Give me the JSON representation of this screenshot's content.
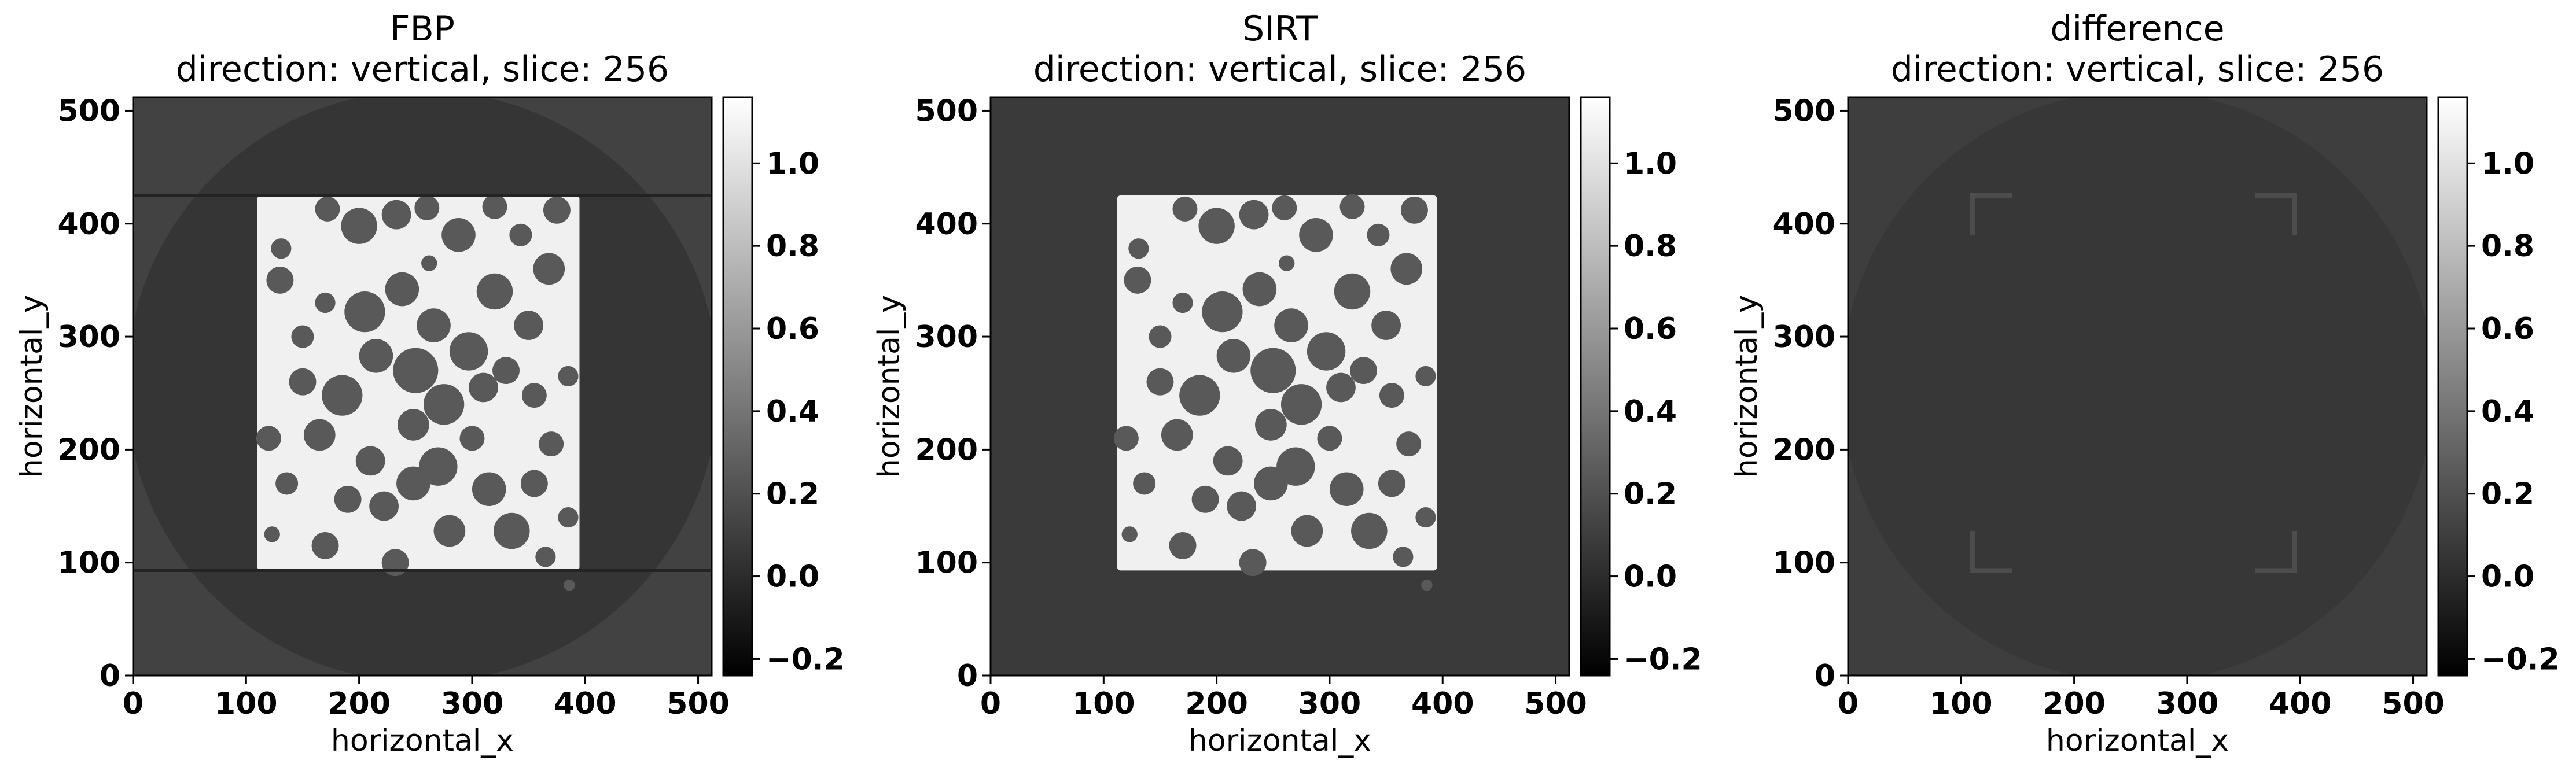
{
  "chart_data": [
    {
      "type": "heatmap",
      "panel": "fbp",
      "title": "FBP",
      "subtitle": "direction: vertical, slice: 256",
      "xlabel": "horizontal_x",
      "ylabel": "horizontal_y",
      "xlim": [
        0,
        512
      ],
      "ylim": [
        0,
        512
      ],
      "xticks": [
        0,
        100,
        200,
        300,
        400,
        500
      ],
      "yticks": [
        0,
        100,
        200,
        300,
        400,
        500
      ],
      "colormap": "gray",
      "clim": [
        -0.24,
        1.16
      ],
      "colorbar_ticks": [
        -0.2,
        0.0,
        0.2,
        0.4,
        0.6,
        0.8,
        1.0
      ],
      "background_value": 0.12,
      "circle_value": 0.05,
      "object": {
        "x": [
          110,
          395
        ],
        "y": [
          93,
          425
        ],
        "value": 1.08,
        "pore_value": 0.25
      }
    },
    {
      "type": "heatmap",
      "panel": "sirt",
      "title": "SIRT",
      "subtitle": "direction: vertical, slice: 256",
      "xlabel": "horizontal_x",
      "ylabel": "horizontal_y",
      "xlim": [
        0,
        512
      ],
      "ylim": [
        0,
        512
      ],
      "xticks": [
        0,
        100,
        200,
        300,
        400,
        500
      ],
      "yticks": [
        0,
        100,
        200,
        300,
        400,
        500
      ],
      "colormap": "gray",
      "clim": [
        -0.24,
        1.16
      ],
      "colorbar_ticks": [
        -0.2,
        0.0,
        0.2,
        0.4,
        0.6,
        0.8,
        1.0
      ],
      "background_value": 0.08,
      "circle_value": 0.08,
      "object": {
        "x": [
          112,
          395
        ],
        "y": [
          93,
          425
        ],
        "value": 1.08,
        "pore_value": 0.25
      }
    },
    {
      "type": "heatmap",
      "panel": "difference",
      "title": "difference",
      "subtitle": "direction: vertical, slice: 256",
      "xlabel": "horizontal_x",
      "ylabel": "horizontal_y",
      "xlim": [
        0,
        512
      ],
      "ylim": [
        0,
        512
      ],
      "xticks": [
        0,
        100,
        200,
        300,
        400,
        500
      ],
      "yticks": [
        0,
        100,
        200,
        300,
        400,
        500
      ],
      "colormap": "gray",
      "clim": [
        -0.24,
        1.16
      ],
      "colorbar_ticks": [
        -0.2,
        0.0,
        0.2,
        0.4,
        0.6,
        0.8,
        1.0
      ],
      "background_value": 0.1,
      "circle_value": 0.06,
      "object": null
    }
  ],
  "pores": [
    [
      130,
      350,
      12
    ],
    [
      172,
      413,
      11
    ],
    [
      200,
      398,
      16
    ],
    [
      233,
      408,
      13
    ],
    [
      260,
      414,
      11
    ],
    [
      288,
      390,
      15
    ],
    [
      320,
      415,
      11
    ],
    [
      343,
      390,
      10
    ],
    [
      375,
      412,
      12
    ],
    [
      131,
      378,
      9
    ],
    [
      262,
      365,
      7
    ],
    [
      238,
      342,
      15
    ],
    [
      170,
      330,
      9
    ],
    [
      205,
      322,
      18
    ],
    [
      150,
      300,
      10
    ],
    [
      320,
      340,
      16
    ],
    [
      368,
      360,
      14
    ],
    [
      266,
      310,
      15
    ],
    [
      297,
      287,
      17
    ],
    [
      350,
      310,
      13
    ],
    [
      150,
      260,
      12
    ],
    [
      185,
      248,
      18
    ],
    [
      215,
      283,
      15
    ],
    [
      250,
      270,
      20
    ],
    [
      275,
      240,
      18
    ],
    [
      248,
      222,
      14
    ],
    [
      310,
      255,
      13
    ],
    [
      330,
      270,
      12
    ],
    [
      355,
      248,
      11
    ],
    [
      385,
      265,
      9
    ],
    [
      370,
      205,
      11
    ],
    [
      120,
      210,
      11
    ],
    [
      165,
      213,
      14
    ],
    [
      210,
      190,
      13
    ],
    [
      270,
      185,
      17
    ],
    [
      300,
      210,
      11
    ],
    [
      190,
      156,
      12
    ],
    [
      222,
      150,
      13
    ],
    [
      248,
      170,
      15
    ],
    [
      315,
      165,
      15
    ],
    [
      355,
      170,
      12
    ],
    [
      385,
      140,
      9
    ],
    [
      136,
      170,
      10
    ],
    [
      170,
      115,
      12
    ],
    [
      232,
      100,
      12
    ],
    [
      280,
      128,
      14
    ],
    [
      335,
      128,
      16
    ],
    [
      365,
      105,
      9
    ],
    [
      123,
      125,
      7
    ],
    [
      386,
      80,
      5
    ]
  ]
}
